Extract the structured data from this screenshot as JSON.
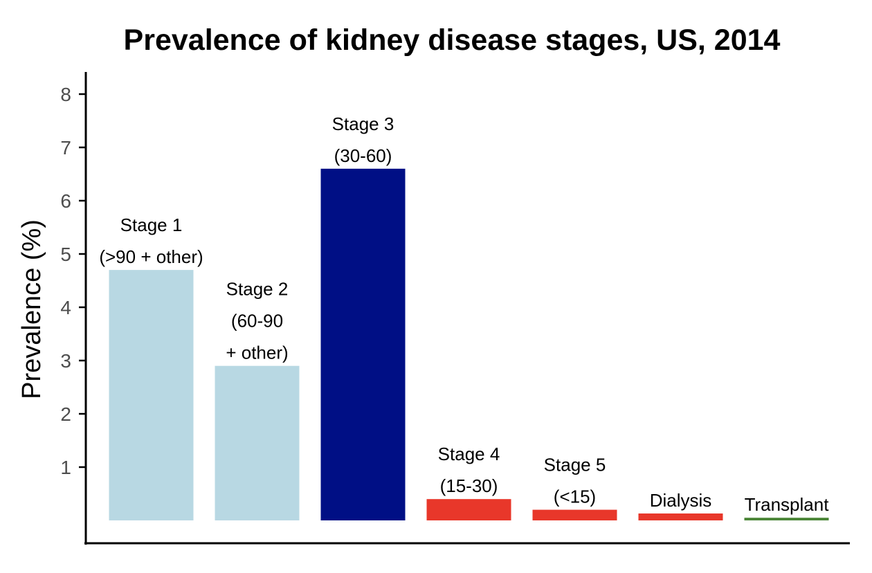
{
  "chart_data": {
    "type": "bar",
    "title": "Prevalence of kidney disease stages, US, 2014",
    "xlabel": "",
    "ylabel": "Prevalence (%)",
    "ylim": [
      0,
      8
    ],
    "yticks": [
      1,
      2,
      3,
      4,
      5,
      6,
      7,
      8
    ],
    "grid": false,
    "legend": "none",
    "bars": [
      {
        "label_lines": [
          "Stage 1",
          "(>90 + other)"
        ],
        "value": 4.7,
        "color": "#b8d8e3"
      },
      {
        "label_lines": [
          "Stage 2",
          "(60-90",
          "+ other)"
        ],
        "value": 2.9,
        "color": "#b8d8e3"
      },
      {
        "label_lines": [
          "Stage 3",
          "(30-60)"
        ],
        "value": 6.6,
        "color": "#000f85"
      },
      {
        "label_lines": [
          "Stage 4",
          "(15-30)"
        ],
        "value": 0.4,
        "color": "#e8372a"
      },
      {
        "label_lines": [
          "Stage 5",
          "(<15)"
        ],
        "value": 0.2,
        "color": "#e8372a"
      },
      {
        "label_lines": [
          "Dialysis"
        ],
        "value": 0.13,
        "color": "#e8372a"
      },
      {
        "label_lines": [
          "Transplant"
        ],
        "value": 0.05,
        "color": "#4a8537"
      }
    ]
  }
}
